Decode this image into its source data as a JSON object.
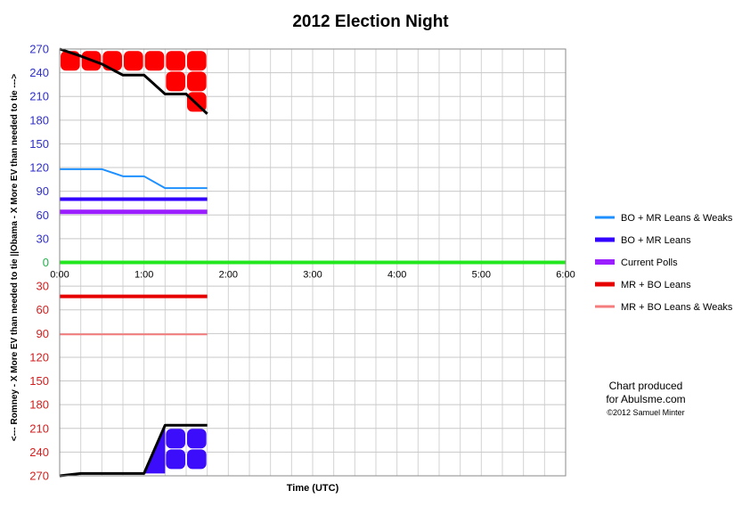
{
  "chart_data": {
    "type": "line",
    "title": "2012 Election Night",
    "xlabel": "Time (UTC)",
    "ylabel_top": "Obama - X More EV than needed to tie --->",
    "ylabel_bottom": "<--- Romney - X More EV than needed to tie ||",
    "x_ticks": [
      "0:00",
      "1:00",
      "2:00",
      "3:00",
      "4:00",
      "5:00",
      "6:00"
    ],
    "xlim_hours": [
      0,
      6
    ],
    "y_ticks": [
      {
        "label": "270",
        "value": 270
      },
      {
        "label": "240",
        "value": 240
      },
      {
        "label": "210",
        "value": 210
      },
      {
        "label": "180",
        "value": 180
      },
      {
        "label": "150",
        "value": 150
      },
      {
        "label": "120",
        "value": 120
      },
      {
        "label": "90",
        "value": 90
      },
      {
        "label": "60",
        "value": 60
      },
      {
        "label": "30",
        "value": 30
      },
      {
        "label": "0",
        "value": 0
      },
      {
        "label": "30",
        "value": -30
      },
      {
        "label": "60",
        "value": -60
      },
      {
        "label": "90",
        "value": -90
      },
      {
        "label": "120",
        "value": -120
      },
      {
        "label": "150",
        "value": -150
      },
      {
        "label": "180",
        "value": -180
      },
      {
        "label": "210",
        "value": -210
      },
      {
        "label": "240",
        "value": -240
      },
      {
        "label": "270",
        "value": -270
      }
    ],
    "ylim": [
      -270,
      270
    ],
    "grid": true,
    "legend_position": "right",
    "colors": {
      "obama_axis": "#2f2fc8",
      "romney_axis": "#d21e1e",
      "zero_label": "#22b04b",
      "zero_line": "#22e61e",
      "black_line": "#000000",
      "obama_block": "#3b0dfa",
      "romney_block": "#ff0000"
    },
    "series": [
      {
        "name": "BO + MR Leans & Weaks",
        "color": "#1e90ff",
        "width": 2,
        "x": [
          0,
          0.5,
          0.75,
          1.0,
          1.25,
          1.5,
          1.75
        ],
        "y": [
          118,
          118,
          109,
          109,
          94,
          94,
          94
        ]
      },
      {
        "name": "BO + MR Leans",
        "color": "#3300ff",
        "width": 4,
        "x": [
          0,
          1.75
        ],
        "y": [
          80,
          80
        ]
      },
      {
        "name": "Current Polls",
        "color": "#9a1eff",
        "width": 5,
        "x": [
          0,
          1.75
        ],
        "y": [
          64,
          64
        ]
      },
      {
        "name": "MR + BO Leans",
        "color": "#e60000",
        "width": 4,
        "x": [
          0,
          1.75
        ],
        "y": [
          -43,
          -43
        ]
      },
      {
        "name": "MR + BO Leans & Weaks",
        "color": "#f47c7c",
        "width": 2,
        "x": [
          0,
          1.75
        ],
        "y": [
          -91,
          -91
        ]
      }
    ],
    "obama_black_line": {
      "x": [
        0,
        0.25,
        0.5,
        0.75,
        1.0,
        1.25,
        1.5,
        1.75
      ],
      "y": [
        270,
        261,
        251,
        237,
        237,
        213,
        213,
        188
      ]
    },
    "romney_black_line": {
      "x": [
        0,
        0.25,
        0.5,
        0.75,
        1.0,
        1.25,
        1.5,
        1.75
      ],
      "y": [
        -270,
        -267,
        -267,
        -267,
        -267,
        -206,
        -206,
        -206
      ]
    }
  },
  "credit": {
    "line1": "Chart produced",
    "line2": "for Abulsme.com",
    "line3": "©2012 Samuel Minter"
  }
}
